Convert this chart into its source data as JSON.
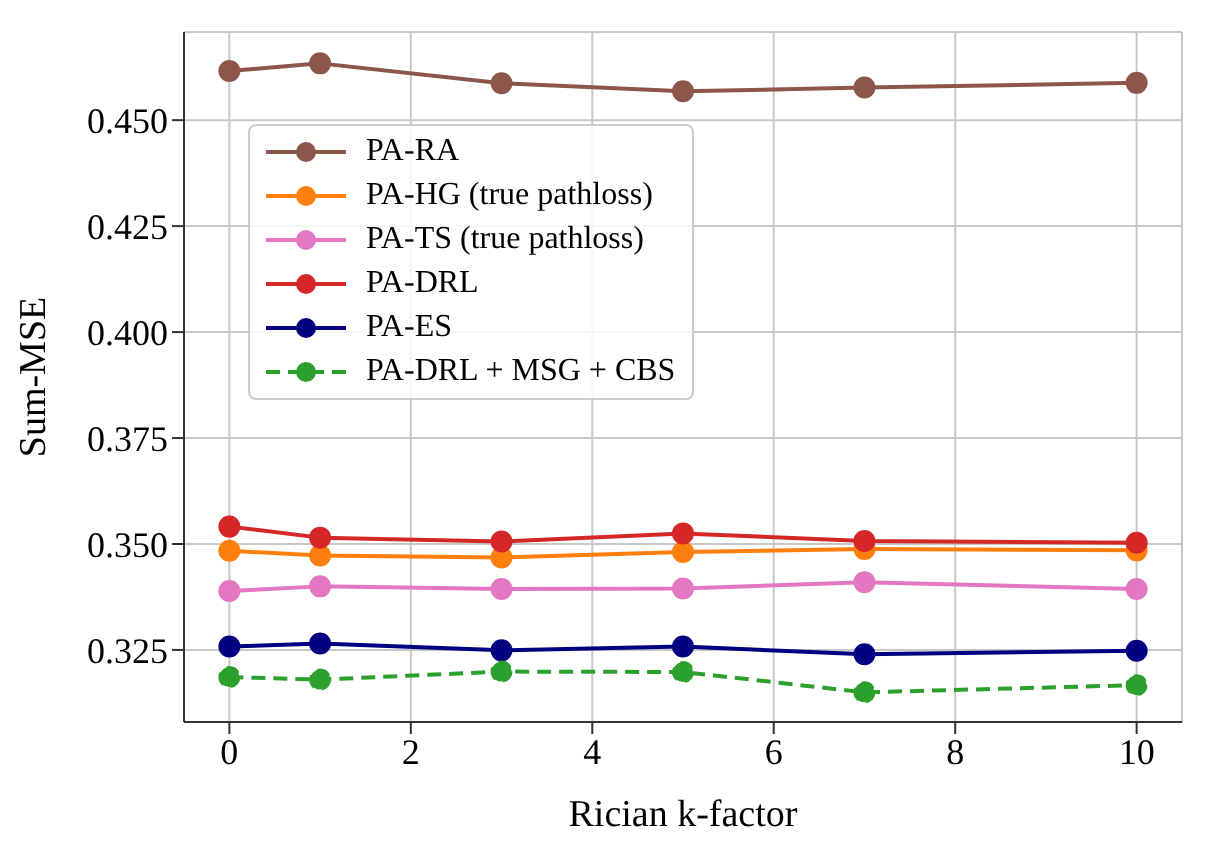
{
  "chart_data": {
    "type": "line",
    "xlabel": "Rician k-factor",
    "ylabel": "Sum-MSE",
    "x": [
      0,
      1,
      3,
      5,
      7,
      10
    ],
    "xlim": [
      -0.5,
      10.5
    ],
    "xticks": [
      0,
      2,
      4,
      6,
      8,
      10
    ],
    "ylim": [
      0.308,
      0.4708
    ],
    "yticks": [
      0.325,
      {
        "value": 0.35,
        "label": "0.350"
      },
      0.375,
      {
        "value": 0.4,
        "label": "0.400"
      },
      0.425,
      {
        "value": 0.45,
        "label": "0.450"
      }
    ],
    "grid": true,
    "legend": "top left",
    "marker": "circle",
    "series": [
      {
        "name": "PA-RA",
        "color": "#8c564b",
        "values": [
          0.4616,
          0.4634,
          0.4587,
          0.4568,
          0.4577,
          0.4588
        ]
      },
      {
        "name": "PA-HG (true pathloss)",
        "color": "#ff7f0e",
        "values": [
          0.3484,
          0.3473,
          0.3468,
          0.3481,
          0.3488,
          0.3485
        ]
      },
      {
        "name": "PA-TS (true pathloss)",
        "color": "#e377c2",
        "values": [
          0.3389,
          0.34,
          0.3394,
          0.3395,
          0.341,
          0.3394
        ]
      },
      {
        "name": "PA-DRL",
        "color": "#d62728",
        "values": [
          0.3541,
          0.3515,
          0.3506,
          0.3525,
          0.3507,
          0.3503
        ]
      },
      {
        "name": "PA-ES",
        "color": "#000080",
        "values": [
          0.3258,
          0.3265,
          0.3249,
          0.3258,
          0.324,
          0.3248
        ]
      },
      {
        "name": "PA-DRL + MSG + CBS",
        "color": "#2ca02c",
        "line_style": "dashed",
        "values": [
          0.3186,
          0.318,
          0.3199,
          0.3198,
          0.315,
          0.3167
        ]
      }
    ]
  }
}
